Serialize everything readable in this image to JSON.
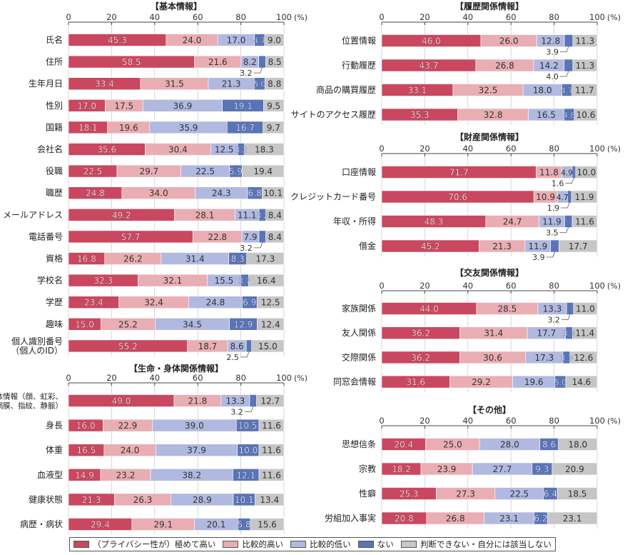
{
  "colors": {
    "very_high": "#c9485f",
    "somewhat_high": "#e8aeb4",
    "somewhat_low": "#b1b9e0",
    "none": "#5a74b6",
    "cannot_judge": "#c6c6c6"
  },
  "legend": [
    {
      "key": "very_high",
      "label": "（プライバシー性が）極めて高い"
    },
    {
      "key": "somewhat_high",
      "label": "比較的高い"
    },
    {
      "key": "somewhat_low",
      "label": "比較的低い"
    },
    {
      "key": "none",
      "label": "ない"
    },
    {
      "key": "cannot_judge",
      "label": "判断できない・自分には該当しない"
    }
  ],
  "chart_data": [
    {
      "type": "bar",
      "orientation": "horizontal-stacked",
      "title": "【基本情報】",
      "xlim": [
        0,
        100
      ],
      "xticks": [
        "0",
        "20",
        "40",
        "60",
        "80",
        "100"
      ],
      "xunit": "(%)",
      "series_keys": [
        "very_high",
        "somewhat_high",
        "somewhat_low",
        "none",
        "cannot_judge"
      ],
      "categories": [
        "氏名",
        "住所",
        "生年月日",
        "性別",
        "国籍",
        "会社名",
        "役職",
        "職歴",
        "メールアドレス",
        "電話番号",
        "資格",
        "学校名",
        "学歴",
        "趣味",
        "個人識別番号\n（個人のID）"
      ],
      "values": [
        [
          45.3,
          24.0,
          17.0,
          4.7,
          9.0
        ],
        [
          58.5,
          21.6,
          8.2,
          3.2,
          8.5
        ],
        [
          33.4,
          31.5,
          21.3,
          5.0,
          8.8
        ],
        [
          17.0,
          17.5,
          36.9,
          19.1,
          9.5
        ],
        [
          18.1,
          19.6,
          35.9,
          16.7,
          9.7
        ],
        [
          35.6,
          30.4,
          12.5,
          3.2,
          18.3
        ],
        [
          22.5,
          29.7,
          22.5,
          5.9,
          19.4
        ],
        [
          24.8,
          34.0,
          24.3,
          6.8,
          10.1
        ],
        [
          49.2,
          28.1,
          11.1,
          3.2,
          8.4
        ],
        [
          57.7,
          22.8,
          7.9,
          3.2,
          8.4
        ],
        [
          16.8,
          26.2,
          31.4,
          8.3,
          17.3
        ],
        [
          32.3,
          32.1,
          15.5,
          3.7,
          16.4
        ],
        [
          23.4,
          32.4,
          24.8,
          6.9,
          12.5
        ],
        [
          15.0,
          25.2,
          34.5,
          12.9,
          12.4
        ],
        [
          55.2,
          18.7,
          8.6,
          2.5,
          15.0
        ]
      ],
      "labels": [
        [
          "45.3",
          "24.0",
          "17.0",
          "4.7",
          "9.0"
        ],
        [
          "58.5",
          "21.6",
          "8.2",
          "3.2",
          "8.5"
        ],
        [
          "33.4",
          "31.5",
          "21.3",
          "5.0",
          "8.8"
        ],
        [
          "17.0",
          "17.5",
          "36.9",
          "19.1",
          "9.5"
        ],
        [
          "18.1",
          "19.6",
          "35.9",
          "16.7",
          "9.7"
        ],
        [
          "35.6",
          "30.4",
          "12.5",
          "3.2",
          "18.3"
        ],
        [
          "22.5",
          "29.7",
          "22.5",
          "5.9",
          "19.4"
        ],
        [
          "24.8",
          "34.0",
          "24.3",
          "6.8",
          "10.1"
        ],
        [
          "49.2",
          "28.1",
          "11.1",
          "3.2",
          "8.4"
        ],
        [
          "57.7",
          "22.8",
          "7.9",
          "3.2",
          "8.4"
        ],
        [
          "16.8",
          "26.2",
          "31.4",
          "8.3",
          "17.3"
        ],
        [
          "32.3",
          "32.1",
          "15.5",
          "3.7",
          "16.4"
        ],
        [
          "23.4",
          "32.4",
          "24.8",
          "6.9",
          "12.5"
        ],
        [
          "15.0",
          "25.2",
          "34.5",
          "12.9",
          "12.4"
        ],
        [
          "55.2",
          "18.7",
          "8.6",
          "2.5",
          "15.0"
        ]
      ],
      "callouts": [
        1,
        9,
        14
      ]
    },
    {
      "type": "bar",
      "orientation": "horizontal-stacked",
      "title": "【生命・身体関係情報】",
      "xlim": [
        0,
        100
      ],
      "xticks": [
        "0",
        "20",
        "40",
        "60",
        "80",
        "100"
      ],
      "xunit": "(%)",
      "series_keys": [
        "very_high",
        "somewhat_high",
        "somewhat_low",
        "none",
        "cannot_judge"
      ],
      "categories": [
        "生体情報（顔、虹彩、\n網膜、指紋、静脈）",
        "身長",
        "体重",
        "血液型",
        "健康状態",
        "病歴・病状"
      ],
      "values": [
        [
          49.0,
          21.8,
          13.3,
          3.2,
          12.7
        ],
        [
          16.0,
          22.9,
          39.0,
          10.5,
          11.6
        ],
        [
          16.5,
          24.0,
          37.9,
          10.0,
          11.6
        ],
        [
          14.9,
          23.2,
          38.2,
          12.1,
          11.6
        ],
        [
          21.3,
          26.3,
          28.9,
          10.1,
          13.4
        ],
        [
          29.4,
          29.1,
          20.1,
          5.8,
          15.6
        ]
      ],
      "labels": [
        [
          "49.0",
          "21.8",
          "13.3",
          "3.2",
          "12.7"
        ],
        [
          "16.0",
          "22.9",
          "39.0",
          "10.5",
          "11.6"
        ],
        [
          "16.5",
          "24.0",
          "37.9",
          "10.0",
          "11.6"
        ],
        [
          "14.9",
          "23.2",
          "38.2",
          "12.1",
          "11.6"
        ],
        [
          "21.3",
          "26.3",
          "28.9",
          "10.1",
          "13.4"
        ],
        [
          "29.4",
          "29.1",
          "20.1",
          "5.8",
          "15.6"
        ]
      ],
      "callouts": [
        0
      ]
    },
    {
      "type": "bar",
      "orientation": "horizontal-stacked",
      "title": "【履歴関係情報】",
      "xlim": [
        0,
        100
      ],
      "xticks": [
        "0",
        "20",
        "40",
        "60",
        "80",
        "100"
      ],
      "xunit": "(%)",
      "series_keys": [
        "very_high",
        "somewhat_high",
        "somewhat_low",
        "none",
        "cannot_judge"
      ],
      "categories": [
        "位置情報",
        "行動履歴",
        "商品の購買履歴",
        "サイトのアクセス履歴"
      ],
      "values": [
        [
          46.0,
          26.0,
          12.8,
          3.9,
          11.3
        ],
        [
          43.7,
          26.8,
          14.2,
          4.0,
          11.3
        ],
        [
          33.1,
          32.5,
          18.0,
          4.7,
          11.7
        ],
        [
          35.3,
          32.8,
          16.5,
          4.8,
          10.6
        ]
      ],
      "labels": [
        [
          "46.0",
          "26.0",
          "12.8",
          "3.9",
          "11.3"
        ],
        [
          "43.7",
          "26.8",
          "14.2",
          "4.0",
          "11.3"
        ],
        [
          "33.1",
          "32.5",
          "18.0",
          "4.7",
          "11.7"
        ],
        [
          "35.3",
          "32.8",
          "16.5",
          "4.8",
          "10.6"
        ]
      ],
      "callouts": [
        0,
        1
      ]
    },
    {
      "type": "bar",
      "orientation": "horizontal-stacked",
      "title": "【財産関係情報】",
      "xlim": [
        0,
        100
      ],
      "xticks": [
        "0",
        "20",
        "40",
        "60",
        "80",
        "100"
      ],
      "xunit": "(%)",
      "series_keys": [
        "very_high",
        "somewhat_high",
        "somewhat_low",
        "none",
        "cannot_judge"
      ],
      "categories": [
        "口座情報",
        "クレジットカード番号",
        "年収・所得",
        "借金"
      ],
      "values": [
        [
          71.7,
          11.8,
          4.9,
          1.6,
          10.0
        ],
        [
          70.6,
          10.9,
          4.7,
          1.9,
          11.9
        ],
        [
          48.3,
          24.7,
          11.9,
          3.5,
          11.6
        ],
        [
          45.2,
          21.3,
          11.9,
          3.9,
          17.7
        ]
      ],
      "labels": [
        [
          "71.7",
          "11.8",
          "4.9",
          "1.6",
          "10.0"
        ],
        [
          "70.6",
          "10.9",
          "4.7",
          "1.9",
          "11.9"
        ],
        [
          "48.3",
          "24.7",
          "11.9",
          "3.5",
          "11.6"
        ],
        [
          "45.2",
          "21.3",
          "11.9",
          "3.9",
          "17.7"
        ]
      ],
      "callouts": [
        0,
        1,
        2,
        3
      ]
    },
    {
      "type": "bar",
      "orientation": "horizontal-stacked",
      "title": "【交友関係情報】",
      "xlim": [
        0,
        100
      ],
      "xticks": [
        "0",
        "20",
        "40",
        "60",
        "80",
        "100"
      ],
      "xunit": "(%)",
      "series_keys": [
        "very_high",
        "somewhat_high",
        "somewhat_low",
        "none",
        "cannot_judge"
      ],
      "categories": [
        "家族関係",
        "友人関係",
        "交際関係",
        "同窓会情報"
      ],
      "values": [
        [
          44.0,
          28.5,
          13.3,
          3.2,
          11.0
        ],
        [
          36.2,
          31.4,
          17.7,
          3.3,
          11.4
        ],
        [
          36.2,
          30.6,
          17.3,
          3.3,
          12.6
        ],
        [
          31.6,
          29.2,
          19.6,
          5.0,
          14.6
        ]
      ],
      "labels": [
        [
          "44.0",
          "28.5",
          "13.3",
          "3.2",
          "11.0"
        ],
        [
          "36.2",
          "31.4",
          "17.7",
          "3.3",
          "11.4"
        ],
        [
          "36.2",
          "30.6",
          "17.3",
          "3.3",
          "12.6"
        ],
        [
          "31.6",
          "29.2",
          "19.6",
          "5.0",
          "14.6"
        ]
      ],
      "callouts": [
        0
      ]
    },
    {
      "type": "bar",
      "orientation": "horizontal-stacked",
      "title": "【その他】",
      "xlim": [
        0,
        100
      ],
      "xticks": [
        "0",
        "20",
        "40",
        "60",
        "80",
        "100"
      ],
      "xunit": "(%)",
      "series_keys": [
        "very_high",
        "somewhat_high",
        "somewhat_low",
        "none",
        "cannot_judge"
      ],
      "categories": [
        "思想信条",
        "宗教",
        "性癖",
        "労組加入事実"
      ],
      "values": [
        [
          20.4,
          25.0,
          28.0,
          8.6,
          18.0
        ],
        [
          18.2,
          23.9,
          27.7,
          9.3,
          20.9
        ],
        [
          25.3,
          27.3,
          22.5,
          6.4,
          18.5
        ],
        [
          20.8,
          26.8,
          23.1,
          6.2,
          23.1
        ]
      ],
      "labels": [
        [
          "20.4",
          "25.0",
          "28.0",
          "8.6",
          "18.0"
        ],
        [
          "18.2",
          "23.9",
          "27.7",
          "9.3",
          "20.9"
        ],
        [
          "25.3",
          "27.3",
          "22.5",
          "6.4",
          "18.5"
        ],
        [
          "20.8",
          "26.8",
          "23.1",
          "6.2",
          "23.1"
        ]
      ],
      "callouts": []
    }
  ]
}
